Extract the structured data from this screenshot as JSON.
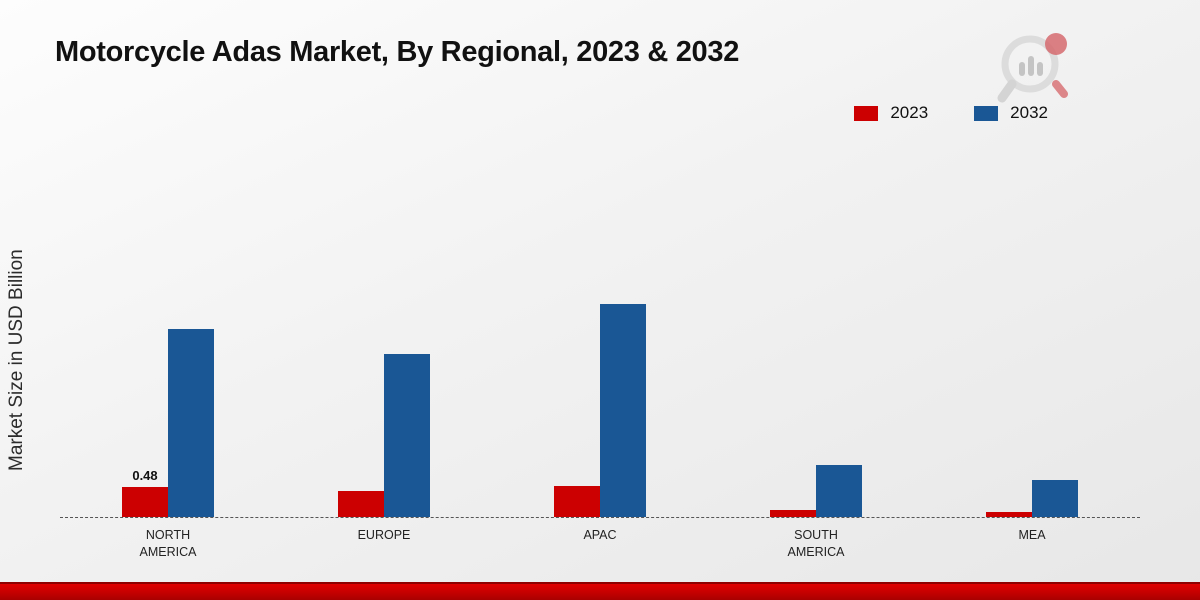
{
  "header": {
    "title": "Motorcycle Adas Market, By Regional, 2023 & 2032"
  },
  "legend": [
    {
      "label": "2023",
      "color": "#cc0001"
    },
    {
      "label": "2032",
      "color": "#1a5795"
    }
  ],
  "chart_data": {
    "type": "bar",
    "title": "Motorcycle Adas Market, By Regional, 2023 & 2032",
    "xlabel": "",
    "ylabel": "Market Size in USD Billion",
    "categories": [
      "NORTH AMERICA",
      "EUROPE",
      "APAC",
      "SOUTH AMERICA",
      "MEA"
    ],
    "series": [
      {
        "name": "2023",
        "color": "#cc0001",
        "values": [
          0.48,
          0.43,
          0.5,
          0.12,
          0.08
        ]
      },
      {
        "name": "2032",
        "color": "#1a5795",
        "values": [
          3.05,
          2.65,
          3.45,
          0.85,
          0.6
        ]
      }
    ],
    "ylim": [
      0,
      6
    ],
    "grid": false,
    "legend_position": "top-right",
    "baseline_style": "dashed",
    "annotations": [
      {
        "category_index": 0,
        "series": "2023",
        "text": "0.48"
      }
    ]
  },
  "footer": {
    "bar_color": "#cc0001"
  },
  "logo": {
    "name": "market-research-logo"
  }
}
